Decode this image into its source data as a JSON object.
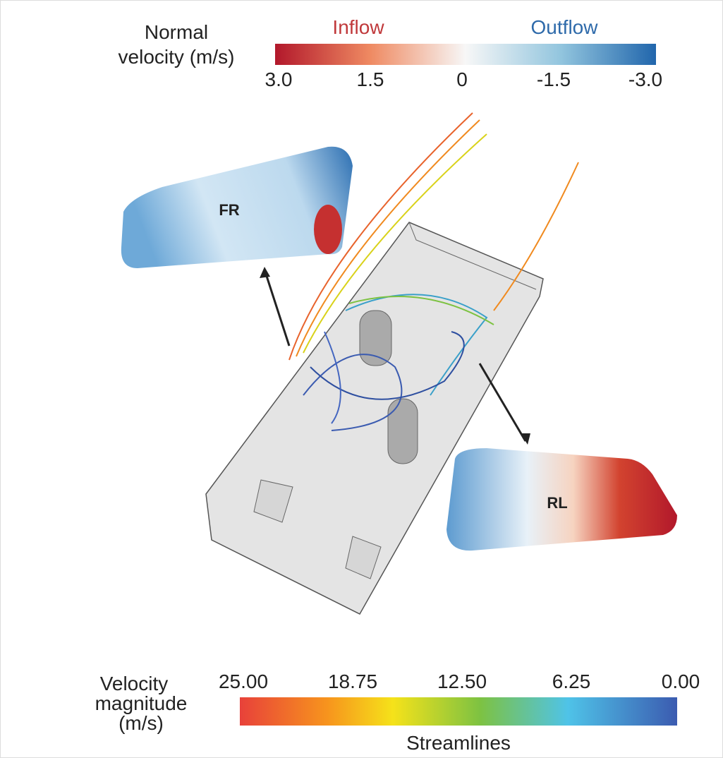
{
  "top_colorbar": {
    "title_lines": [
      "Normal",
      "velocity (m/s)"
    ],
    "left_label": "Inflow",
    "right_label": "Outflow",
    "ticks": [
      "3.0",
      "1.5",
      "0",
      "-1.5",
      "-3.0"
    ]
  },
  "windows": {
    "front_right": "FR",
    "rear_left": "RL"
  },
  "bottom_colorbar": {
    "title_lines": [
      "Velocity",
      "magnitude",
      "(m/s)"
    ],
    "ticks": [
      "25.00",
      "18.75",
      "12.50",
      "6.25",
      "0.00"
    ],
    "caption": "Streamlines"
  }
}
